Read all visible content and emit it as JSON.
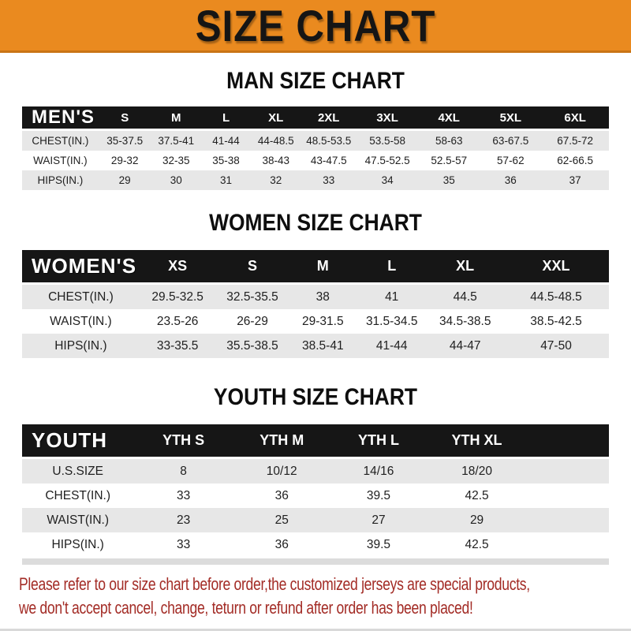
{
  "banner": {
    "title": "SIZE CHART"
  },
  "colors": {
    "banner_bg": "#EA8A1F",
    "banner_edge": "#C97415",
    "header_bar_bg": "#161616",
    "row_stripe": "#E7E7E7",
    "footnote_text": "#A32C26"
  },
  "chart_data": [
    {
      "type": "table",
      "title": "MAN SIZE CHART",
      "header_label": "MEN'S",
      "columns": [
        "S",
        "M",
        "L",
        "XL",
        "2XL",
        "3XL",
        "4XL",
        "5XL",
        "6XL"
      ],
      "rows": [
        {
          "label": "CHEST(IN.)",
          "values": [
            "35-37.5",
            "37.5-41",
            "41-44",
            "44-48.5",
            "48.5-53.5",
            "53.5-58",
            "58-63",
            "63-67.5",
            "67.5-72"
          ]
        },
        {
          "label": "WAIST(IN.)",
          "values": [
            "29-32",
            "32-35",
            "35-38",
            "38-43",
            "43-47.5",
            "47.5-52.5",
            "52.5-57",
            "57-62",
            "62-66.5"
          ]
        },
        {
          "label": "HIPS(IN.)",
          "values": [
            "29",
            "30",
            "31",
            "32",
            "33",
            "34",
            "35",
            "36",
            "37"
          ]
        }
      ]
    },
    {
      "type": "table",
      "title": "WOMEN SIZE CHART",
      "header_label": "WOMEN'S",
      "columns": [
        "XS",
        "S",
        "M",
        "L",
        "XL",
        "XXL"
      ],
      "rows": [
        {
          "label": "CHEST(IN.)",
          "values": [
            "29.5-32.5",
            "32.5-35.5",
            "38",
            "41",
            "44.5",
            "44.5-48.5"
          ]
        },
        {
          "label": "WAIST(IN.)",
          "values": [
            "23.5-26",
            "26-29",
            "29-31.5",
            "31.5-34.5",
            "34.5-38.5",
            "38.5-42.5"
          ]
        },
        {
          "label": "HIPS(IN.)",
          "values": [
            "33-35.5",
            "35.5-38.5",
            "38.5-41",
            "41-44",
            "44-47",
            "47-50"
          ]
        }
      ]
    },
    {
      "type": "table",
      "title": "YOUTH SIZE CHART",
      "header_label": "YOUTH",
      "columns": [
        "YTH S",
        "YTH M",
        "YTH L",
        "YTH XL"
      ],
      "rows": [
        {
          "label": "U.S.SIZE",
          "values": [
            "8",
            "10/12",
            "14/16",
            "18/20"
          ]
        },
        {
          "label": "CHEST(IN.)",
          "values": [
            "33",
            "36",
            "39.5",
            "42.5"
          ]
        },
        {
          "label": "WAIST(IN.)",
          "values": [
            "23",
            "25",
            "27",
            "29"
          ]
        },
        {
          "label": "HIPS(IN.)",
          "values": [
            "33",
            "36",
            "39.5",
            "42.5"
          ]
        }
      ]
    }
  ],
  "footnote": {
    "line1": "Please refer to our size chart before order,the customized jerseys are special products,",
    "line2": "we don't accept cancel, change, teturn or refund after order has been placed!"
  }
}
